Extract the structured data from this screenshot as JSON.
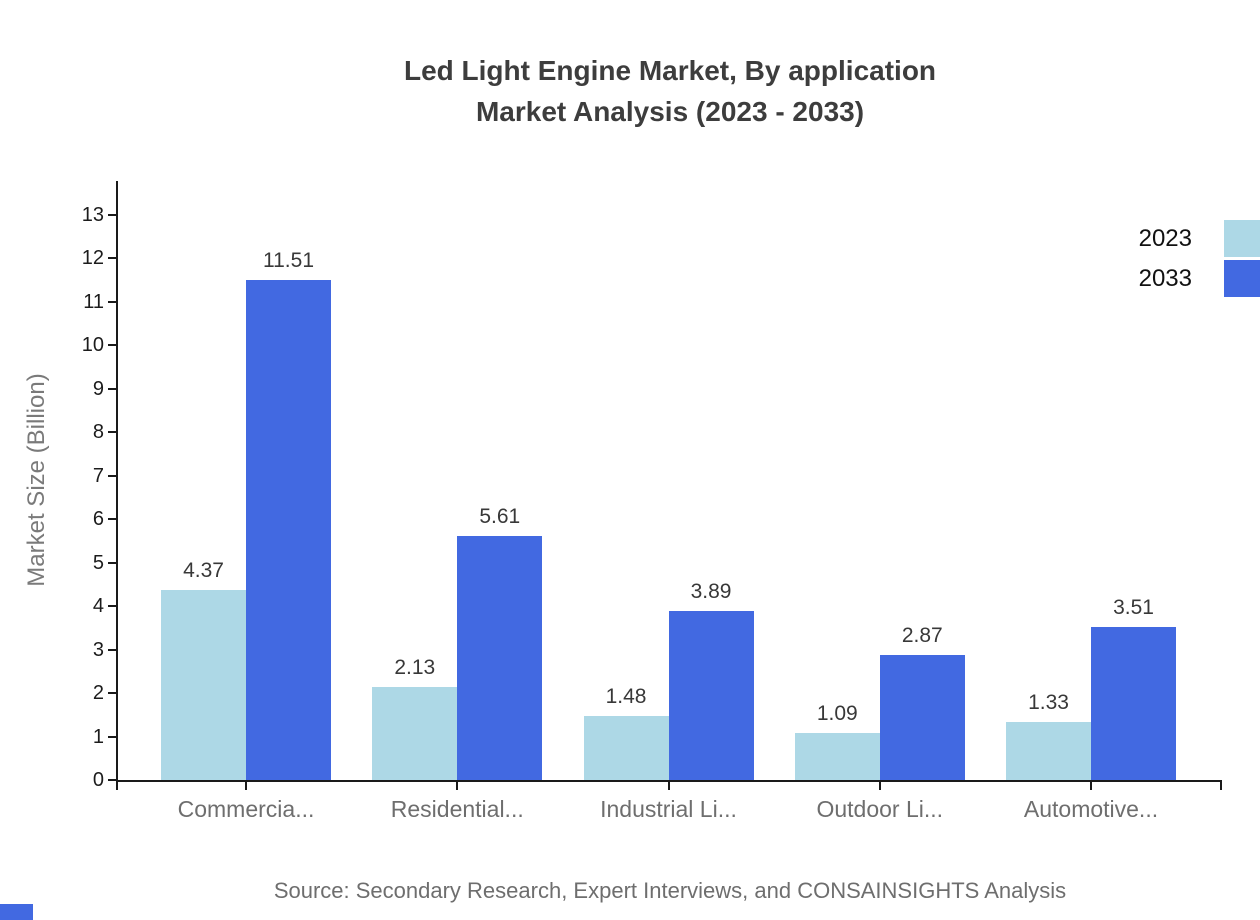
{
  "title": {
    "text_line1": "Led Light Engine Market, By application",
    "text_line2": "Market Analysis (2023 - 2033)"
  },
  "chart_data": {
    "type": "bar",
    "title": "Led Light Engine Market, By application Market Analysis (2023 - 2033)",
    "categories": [
      "Commercia...",
      "Residential...",
      "Industrial Li...",
      "Outdoor Li...",
      "Automotive..."
    ],
    "series": [
      {
        "name": "2023",
        "color": "#add8e6",
        "values": [
          4.37,
          2.13,
          1.48,
          1.09,
          1.33
        ]
      },
      {
        "name": "2033",
        "color": "#4269e1",
        "values": [
          11.51,
          5.61,
          3.89,
          2.87,
          3.51
        ]
      }
    ],
    "xlabel": "",
    "ylabel": "Market Size (Billion)",
    "ylim": [
      0,
      13
    ],
    "yticks": [
      0,
      1,
      2,
      3,
      4,
      5,
      6,
      7,
      8,
      9,
      10,
      11,
      12,
      13
    ],
    "grid": false,
    "legend_position": "top-right",
    "bar_value_labels": true
  },
  "legend": {
    "items": [
      {
        "label": "2023",
        "color": "#add8e6"
      },
      {
        "label": "2033",
        "color": "#4269e1"
      }
    ]
  },
  "source": {
    "text": "Source: Secondary Research, Expert Interviews, and CONSAINSIGHTS Analysis"
  },
  "colors": {
    "background": "#ffffff",
    "series_2023": "#add8e6",
    "series_2033": "#4269e1",
    "axis": "#1a1a1a",
    "title_text": "#3d3d3d",
    "y_tick_label": "#1c1c1c",
    "category_label": "#6e6e6e",
    "value_label": "#383838",
    "axis_title": "#7a7a7a",
    "legend_label": "#111111",
    "source_text": "#6e6e6e",
    "corner_mark": "#4269e1"
  }
}
